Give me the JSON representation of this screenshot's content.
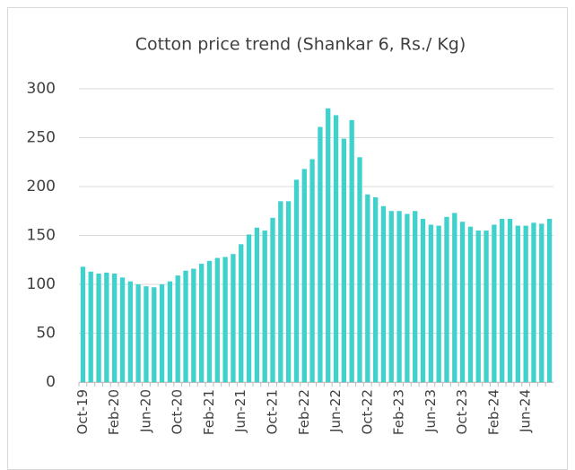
{
  "chart_data": {
    "type": "bar",
    "title": "Cotton price trend (Shankar 6, Rs./ Kg)",
    "categories": [
      "Oct-19",
      null,
      null,
      null,
      "Feb-20",
      null,
      null,
      null,
      "Jun-20",
      null,
      null,
      null,
      "Oct-20",
      null,
      null,
      null,
      "Feb-21",
      null,
      null,
      null,
      "Jun-21",
      null,
      null,
      null,
      "Oct-21",
      null,
      null,
      null,
      "Feb-22",
      null,
      null,
      null,
      "Jun-22",
      null,
      null,
      null,
      "Oct-22",
      null,
      null,
      null,
      "Feb-23",
      null,
      null,
      null,
      "Jun-23",
      null,
      null,
      null,
      "Oct-23",
      null,
      null,
      null,
      "Feb-24",
      null,
      null,
      null,
      "Jun-24",
      null,
      null,
      null
    ],
    "values": [
      118,
      113,
      111,
      112,
      111,
      107,
      103,
      100,
      98,
      97,
      100,
      103,
      109,
      114,
      116,
      121,
      124,
      127,
      128,
      131,
      141,
      151,
      158,
      155,
      168,
      185,
      185,
      207,
      218,
      228,
      261,
      280,
      273,
      249,
      268,
      230,
      192,
      189,
      180,
      175,
      175,
      172,
      175,
      167,
      161,
      160,
      169,
      173,
      164,
      159,
      155,
      155,
      161,
      167,
      167,
      160,
      160,
      163,
      162,
      167
    ],
    "color": "#3fd1cc",
    "ylim": [
      0,
      300
    ],
    "yticks": [
      0,
      50,
      100,
      150,
      200,
      250,
      300
    ],
    "grid": true
  }
}
